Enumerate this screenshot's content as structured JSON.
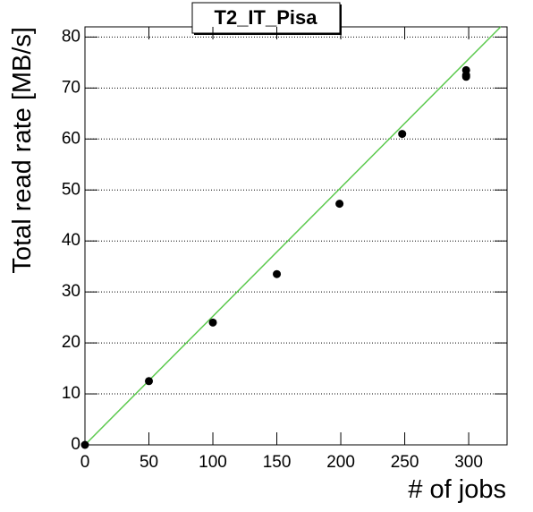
{
  "chart_data": {
    "type": "scatter",
    "title": "T2_IT_Pisa",
    "x_label": "# of jobs",
    "y_label": "Total read rate [MB/s]",
    "x": [
      0,
      50,
      100,
      150,
      199,
      248,
      298,
      298,
      298
    ],
    "values": [
      0,
      12.5,
      24,
      33.5,
      47.3,
      61,
      72.5,
      73.5,
      72.2
    ],
    "color": "#000000",
    "fit": {
      "x": [
        0,
        325
      ],
      "values": [
        0,
        82
      ],
      "color": "#5bc94d"
    },
    "xlim": [
      0,
      330
    ],
    "ylim": [
      0,
      82
    ],
    "xticks": [
      0,
      50,
      100,
      150,
      200,
      250,
      300
    ],
    "yticks": [
      0,
      10,
      20,
      30,
      40,
      50,
      60,
      70,
      80
    ],
    "grid": true
  }
}
